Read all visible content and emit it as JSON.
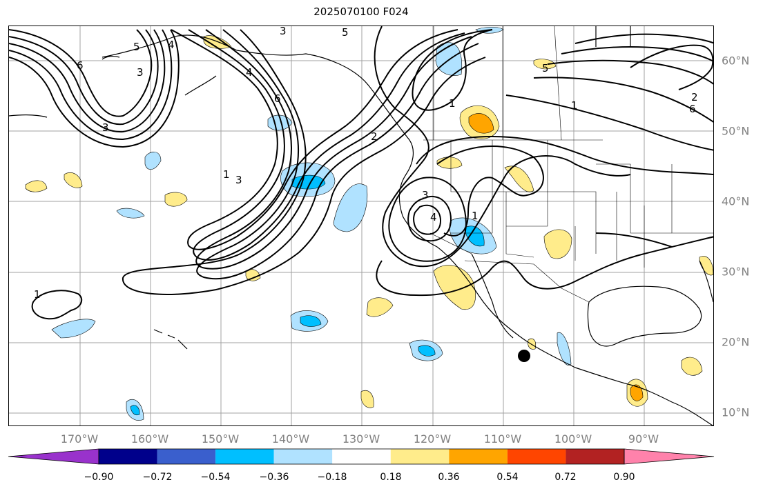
{
  "title": "2025070100 F024",
  "lat_labels": [
    "60°N",
    "50°N",
    "40°N",
    "30°N",
    "20°N",
    "10°N"
  ],
  "lon_labels": [
    "170°W",
    "160°W",
    "150°W",
    "140°W",
    "130°W",
    "120°W",
    "110°W",
    "100°W",
    "90°W"
  ],
  "colorbar": {
    "ticks": [
      "−0.90",
      "−0.72",
      "−0.54",
      "−0.36",
      "−0.18",
      "0.18",
      "0.36",
      "0.54",
      "0.72",
      "0.90"
    ],
    "colors": [
      "#9932cc",
      "#00008b",
      "#3a5fcd",
      "#00bfff",
      "#b0e2ff",
      "#ffffff",
      "#ffec8b",
      "#ffa500",
      "#ff4500",
      "#b22222",
      "#ff82ab"
    ]
  },
  "contour_labels": [
    "6",
    "5",
    "4",
    "3",
    "5",
    "3",
    "4",
    "6",
    "1",
    "3",
    "2",
    "1",
    "3",
    "4",
    "1",
    "1",
    "5",
    "6",
    "3",
    "2",
    "1"
  ],
  "marker": {
    "name": "storm-position"
  }
}
